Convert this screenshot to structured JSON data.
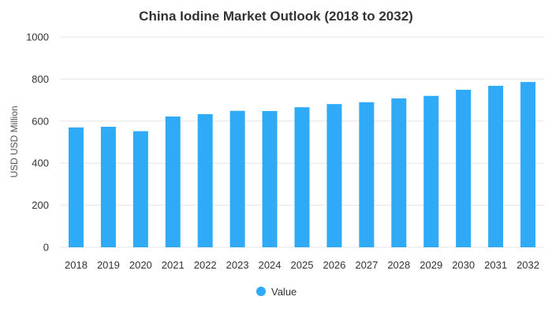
{
  "chart_data": {
    "type": "bar",
    "title": "China Iodine Market Outlook (2018 to 2032)",
    "ylabel": "USD USD Million",
    "xlabel": "",
    "ylim": [
      0,
      1000
    ],
    "yticks": [
      0,
      200,
      400,
      600,
      800,
      1000
    ],
    "grid": true,
    "legend_position": "bottom",
    "bar_color": "#2eaaf7",
    "categories": [
      "2018",
      "2019",
      "2020",
      "2021",
      "2022",
      "2023",
      "2024",
      "2025",
      "2026",
      "2027",
      "2028",
      "2029",
      "2030",
      "2031",
      "2032"
    ],
    "series": [
      {
        "name": "Value",
        "values": [
          570,
          573,
          552,
          622,
          633,
          649,
          648,
          666,
          681,
          690,
          708,
          720,
          749,
          768,
          786
        ]
      }
    ]
  }
}
